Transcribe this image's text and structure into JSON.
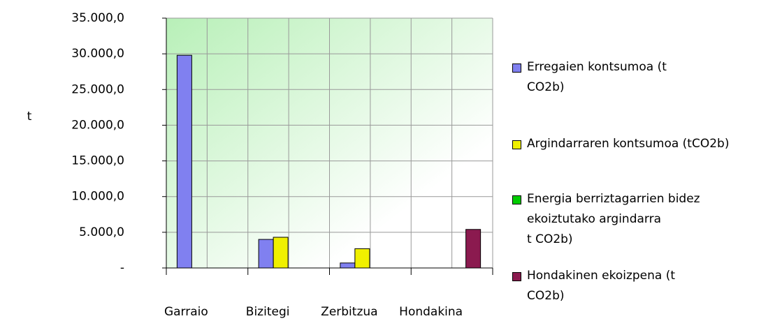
{
  "chart_data": {
    "type": "bar",
    "y_label": "t",
    "categories": [
      "Garraio",
      "Bizitegi",
      "Zerbitzua",
      "Hondakina"
    ],
    "series": [
      {
        "name": "Erregaien kontsumoa (t\nCO2b)",
        "color": "#8080f0",
        "values": [
          29800,
          4000,
          700,
          null
        ]
      },
      {
        "name": "Argindarraren kontsumoa (tCO2b)",
        "color": "#f0f000",
        "values": [
          null,
          4300,
          2700,
          null
        ]
      },
      {
        "name": "Energia berriztagarrien bidez\nekoiztutako argindarra\nt CO2b)",
        "color": "#00cc00",
        "values": [
          null,
          null,
          null,
          null
        ]
      },
      {
        "name": "Hondakinen ekoizpena (t\nCO2b)",
        "color": "#8b1a4f",
        "values": [
          null,
          null,
          null,
          5400
        ]
      }
    ],
    "ylim": [
      0,
      35000
    ],
    "yticks": [
      {
        "value": 0,
        "label": "-"
      },
      {
        "value": 5000,
        "label": "5.000,0"
      },
      {
        "value": 10000,
        "label": "10.000,0"
      },
      {
        "value": 15000,
        "label": "15.000,0"
      },
      {
        "value": 20000,
        "label": "20.000,0"
      },
      {
        "value": 25000,
        "label": "25.000,0"
      },
      {
        "value": 30000,
        "label": "30.000,0"
      },
      {
        "value": 35000,
        "label": "35.000,0"
      }
    ],
    "grid": true,
    "legend": "right"
  }
}
